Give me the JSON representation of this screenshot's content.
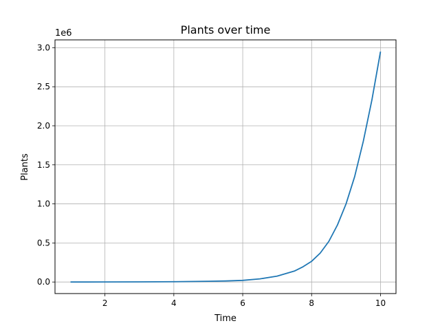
{
  "chart_data": {
    "type": "line",
    "title": "Plants over time",
    "xlabel": "Time",
    "ylabel": "Plants",
    "offset_label": "1e6",
    "xlim": [
      0.55,
      10.45
    ],
    "ylim": [
      -0.148,
      3.1
    ],
    "x_ticks": [
      2,
      4,
      6,
      8,
      10
    ],
    "x_tick_labels": [
      "2",
      "4",
      "6",
      "8",
      "10"
    ],
    "y_ticks": [
      0.0,
      0.5,
      1.0,
      1.5,
      2.0,
      2.5,
      3.0
    ],
    "y_tick_labels": [
      "0.0",
      "0.5",
      "1.0",
      "1.5",
      "2.0",
      "2.5",
      "3.0"
    ],
    "grid": true,
    "line_color": "#1f77b4",
    "series": [
      {
        "x": [
          1,
          2,
          3,
          4,
          5,
          5.5,
          6,
          6.5,
          7,
          7.5,
          7.75,
          8,
          8.25,
          8.5,
          8.75,
          9,
          9.25,
          9.5,
          9.75,
          10
        ],
        "y": [
          0,
          0.0003,
          0.0015,
          0.004,
          0.009,
          0.013,
          0.021,
          0.04,
          0.075,
          0.14,
          0.195,
          0.265,
          0.37,
          0.52,
          0.73,
          1.0,
          1.35,
          1.8,
          2.33,
          2.95
        ]
      }
    ]
  }
}
